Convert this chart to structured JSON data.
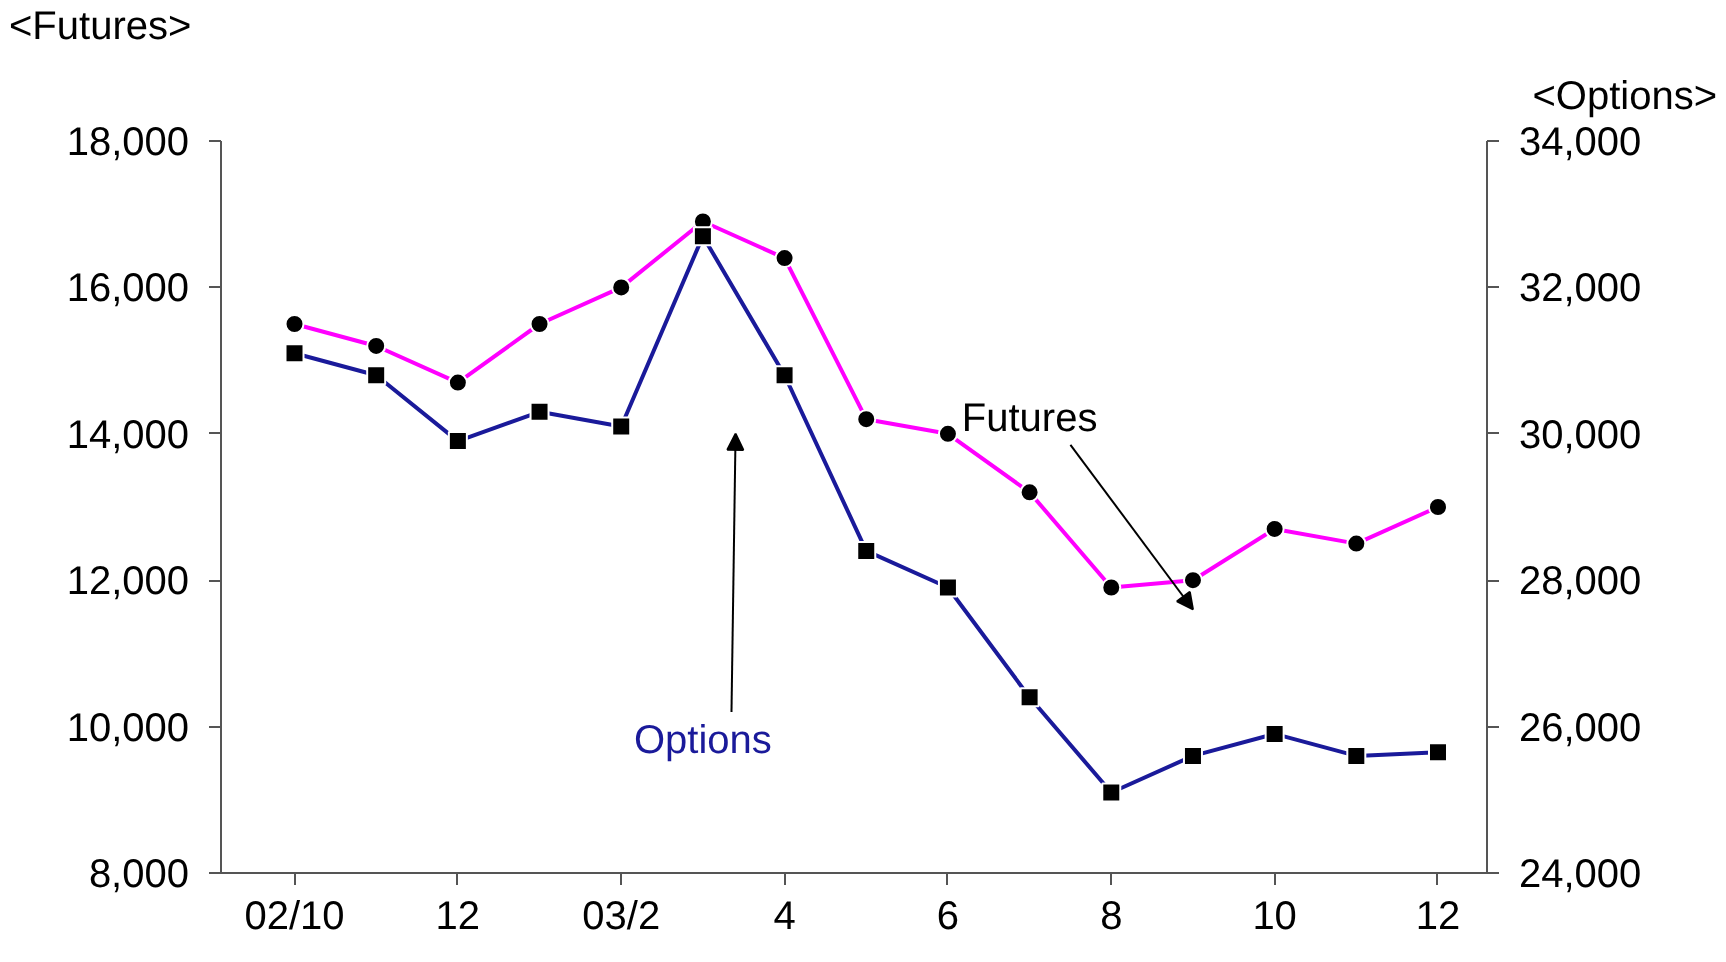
{
  "chart_data": {
    "type": "line",
    "ylabel": "<Futures>",
    "y2label": "<Options>",
    "categories": [
      "02/10",
      null,
      "12",
      null,
      "03/2",
      null,
      "4",
      null,
      "6",
      null,
      "8",
      null,
      "10",
      null,
      "12"
    ],
    "series": [
      {
        "name": "Futures",
        "color": "#ff00ff",
        "marker": "circle",
        "values": [
          15500,
          15200,
          14700,
          15500,
          16000,
          16900,
          16400,
          14200,
          14000,
          13200,
          11900,
          12000,
          12700,
          12500,
          13000
        ]
      },
      {
        "name": "Options",
        "color": "#1a1a9a",
        "marker": "square",
        "axis": "y2",
        "values": [
          31100,
          30800,
          29900,
          30300,
          30100,
          32700,
          30800,
          28400,
          27900,
          26400,
          25100,
          25600,
          25900,
          25600,
          25650
        ]
      }
    ],
    "ylim": [
      8000,
      18000
    ],
    "yticks": [
      {
        "value": 8000,
        "label": "8,000"
      },
      {
        "value": 10000,
        "label": "10,000"
      },
      {
        "value": 12000,
        "label": "12,000"
      },
      {
        "value": 14000,
        "label": "14,000"
      },
      {
        "value": 16000,
        "label": "16,000"
      },
      {
        "value": 18000,
        "label": "18,000"
      }
    ],
    "y2lim": [
      24000,
      34000
    ],
    "y2ticks": [
      {
        "value": 24000,
        "label": "24,000"
      },
      {
        "value": 26000,
        "label": "26,000"
      },
      {
        "value": 28000,
        "label": "28,000"
      },
      {
        "value": 30000,
        "label": "30,000"
      },
      {
        "value": 32000,
        "label": "32,000"
      },
      {
        "value": 34000,
        "label": "34,000"
      }
    ],
    "grid": false
  }
}
